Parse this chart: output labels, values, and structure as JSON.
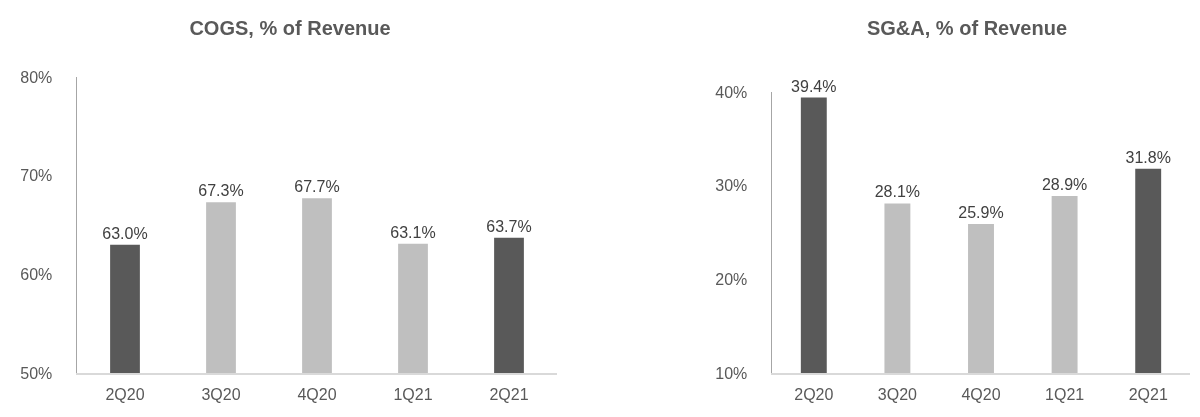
{
  "chart_data": [
    {
      "type": "bar",
      "title": "COGS, % of Revenue",
      "categories": [
        "2Q20",
        "3Q20",
        "4Q20",
        "1Q21",
        "2Q21"
      ],
      "values": [
        63.0,
        67.3,
        67.7,
        63.1,
        63.7
      ],
      "colors": [
        "#595959",
        "#bfbfbf",
        "#bfbfbf",
        "#bfbfbf",
        "#595959"
      ],
      "value_labels": [
        "63.0%",
        "67.3%",
        "67.7%",
        "63.1%",
        "63.7%"
      ],
      "ylim": [
        50,
        80
      ],
      "yticks": [
        {
          "value": 50,
          "label": "50%"
        },
        {
          "value": 60,
          "label": "60%"
        },
        {
          "value": 70,
          "label": "70%"
        },
        {
          "value": 80,
          "label": "80%"
        }
      ]
    },
    {
      "type": "bar",
      "title": "SG&A, % of Revenue",
      "categories": [
        "2Q20",
        "3Q20",
        "4Q20",
        "1Q21",
        "2Q21"
      ],
      "values": [
        39.4,
        28.1,
        25.9,
        28.9,
        31.8
      ],
      "colors": [
        "#595959",
        "#bfbfbf",
        "#bfbfbf",
        "#bfbfbf",
        "#595959"
      ],
      "value_labels": [
        "39.4%",
        "28.1%",
        "25.9%",
        "28.9%",
        "31.8%"
      ],
      "ylim": [
        10,
        40
      ],
      "yticks": [
        {
          "value": 10,
          "label": "10%"
        },
        {
          "value": 20,
          "label": "20%"
        },
        {
          "value": 30,
          "label": "30%"
        },
        {
          "value": 40,
          "label": "40%"
        }
      ]
    }
  ]
}
